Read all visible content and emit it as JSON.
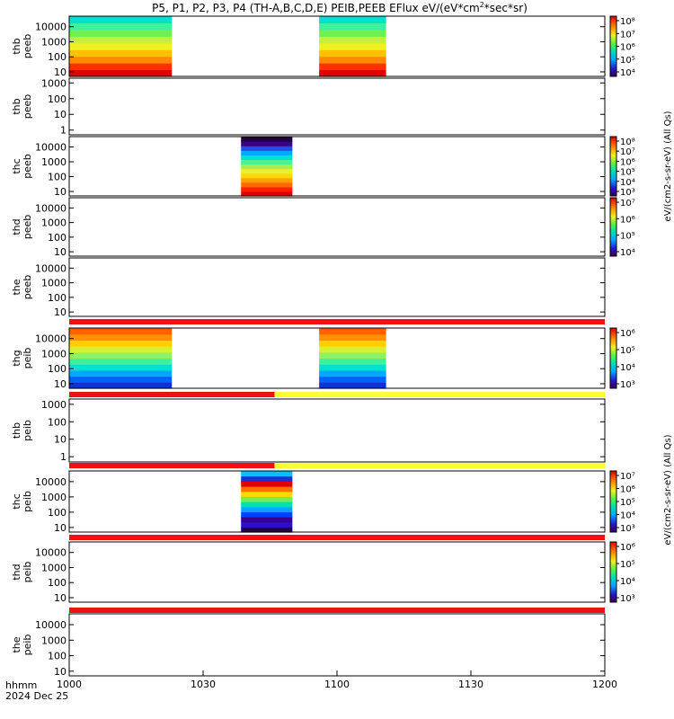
{
  "title": "P5, P1, P2, P3, P4 (TH-A,B,C,D,E) PEIB,PEEB EFlux eV/(eV*cm²*sec*sr)",
  "title_parts": {
    "prefix": "P5, P1, P2, P3, P4 (TH-A,B,C,D,E) PEIB,PEEB EFlux eV/(eV*cm",
    "superscript": "2",
    "suffix": "*sec*sr)"
  },
  "x_axis": {
    "label_line1": "hhmm",
    "label_line2": "2024 Dec 25",
    "ticks": [
      "1000",
      "1030",
      "1100",
      "1130",
      "1200"
    ],
    "range_minutes": [
      0,
      120
    ]
  },
  "colorbar_labels": {
    "electron": "eV/(cm2-s-sr-eV) (All Qs)",
    "ion": "eV/(cm2-s-sr-eV) (All Qs)"
  },
  "colors": {
    "red_bar": "#ee1111",
    "yellow_bar": "#ffff33",
    "black": "#000000"
  },
  "chart_data": {
    "type": "heatmap",
    "time_unit": "minutes after 10:00 UT",
    "panels": [
      {
        "probe_label": "thb",
        "instrument": "peeb",
        "ylabel": "thb\npeeb",
        "yticks": [
          "10000",
          "1000",
          "100",
          "10"
        ],
        "ylog": [
          5,
          50000
        ],
        "blocks": [
          {
            "x": [
              0,
              23
            ],
            "palette": "ion_fill"
          },
          {
            "x": [
              56,
              71
            ],
            "palette": "ion_fill"
          }
        ],
        "colorbar": {
          "ticks": [
            "10⁸",
            "10⁷",
            "10⁶",
            "10⁵",
            "10⁴"
          ]
        }
      },
      {
        "probe_label": "thb",
        "instrument": "peeb",
        "ylabel": "thb\npeeb",
        "yticks": [
          "1000",
          "100",
          "10",
          "1"
        ],
        "ylog": [
          0.5,
          2000
        ],
        "blocks": []
      },
      {
        "probe_label": "thc",
        "instrument": "peeb",
        "ylabel": "thc\npeeb",
        "yticks": [
          "10000",
          "1000",
          "100",
          "10"
        ],
        "ylog": [
          5,
          50000
        ],
        "blocks": [
          {
            "x": [
              38.5,
              50
            ],
            "palette": "electron"
          }
        ],
        "colorbar": {
          "ticks": [
            "10⁸",
            "10⁷",
            "10⁶",
            "10⁵",
            "10⁴",
            "10³"
          ]
        }
      },
      {
        "probe_label": "thd",
        "instrument": "peeb",
        "ylabel": "thd\npeeb",
        "yticks": [
          "10000",
          "1000",
          "100",
          "10"
        ],
        "ylog": [
          5,
          50000
        ],
        "blocks": [],
        "colorbar": {
          "ticks": [
            "10⁷",
            "10⁶",
            "10⁵",
            "10⁴"
          ]
        }
      },
      {
        "probe_label": "the",
        "instrument": "peeb",
        "ylabel": "the\npeeb",
        "yticks": [
          "10000",
          "1000",
          "100",
          "10"
        ],
        "ylog": [
          5,
          50000
        ],
        "blocks": []
      },
      {
        "probe_label": "thg",
        "instrument": "peib",
        "ylabel": "thg\npeib",
        "yticks": [
          "10000",
          "1000",
          "100",
          "10"
        ],
        "ylog": [
          5,
          50000
        ],
        "blocks": [
          {
            "x": [
              0,
              23
            ],
            "palette": "ion"
          },
          {
            "x": [
              56,
              71
            ],
            "palette": "ion"
          }
        ],
        "status_bar": [
          {
            "x": [
              0,
              120
            ],
            "color": "red"
          }
        ],
        "colorbar": {
          "ticks": [
            "10⁶",
            "10⁵",
            "10⁴",
            "10³"
          ]
        }
      },
      {
        "probe_label": "thb",
        "instrument": "peib",
        "ylabel": "thb\npeib",
        "yticks": [
          "1000",
          "100",
          "10",
          "1"
        ],
        "ylog": [
          0.5,
          2000
        ],
        "blocks": [],
        "status_bar": [
          {
            "x": [
              0,
              46
            ],
            "color": "red"
          },
          {
            "x": [
              46,
              120
            ],
            "color": "yellow"
          }
        ]
      },
      {
        "probe_label": "thc",
        "instrument": "peib",
        "ylabel": "thc\npeib",
        "yticks": [
          "10000",
          "1000",
          "100",
          "10"
        ],
        "ylog": [
          5,
          50000
        ],
        "blocks": [
          {
            "x": [
              38.5,
              50
            ],
            "palette": "ion_thc"
          }
        ],
        "status_bar": [
          {
            "x": [
              0,
              46
            ],
            "color": "red"
          },
          {
            "x": [
              46,
              120
            ],
            "color": "yellow"
          }
        ],
        "colorbar": {
          "ticks": [
            "10⁷",
            "10⁶",
            "10⁵",
            "10⁴",
            "10³"
          ]
        }
      },
      {
        "probe_label": "thd",
        "instrument": "peib",
        "ylabel": "thd\npeib",
        "yticks": [
          "10000",
          "1000",
          "100",
          "10"
        ],
        "ylog": [
          5,
          50000
        ],
        "blocks": [],
        "status_bar": [
          {
            "x": [
              0,
              120
            ],
            "color": "red"
          }
        ],
        "colorbar": {
          "ticks": [
            "10⁶",
            "10⁵",
            "10⁴",
            "10³"
          ]
        }
      },
      {
        "probe_label": "the",
        "instrument": "peib",
        "ylabel": "the\npeib",
        "yticks": [
          "10000",
          "1000",
          "100",
          "10"
        ],
        "ylog": [
          5,
          50000
        ],
        "blocks": [],
        "status_bar": [
          {
            "x": [
              0,
              120
            ],
            "color": "red"
          }
        ]
      }
    ]
  }
}
